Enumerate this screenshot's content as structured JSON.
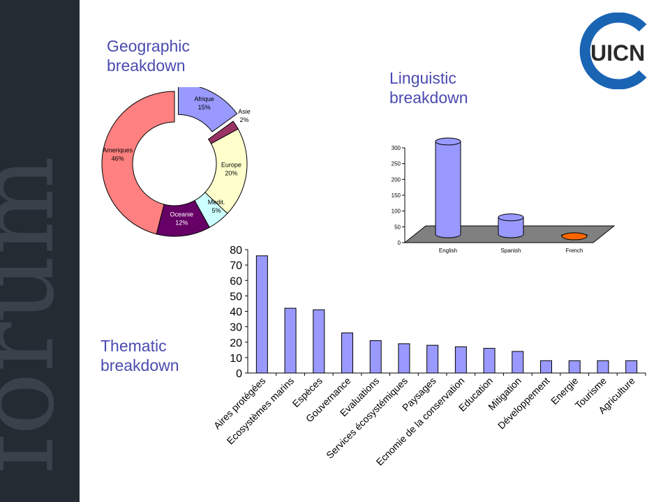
{
  "sidebar": {
    "watermark": "forum"
  },
  "logo": {
    "text": "UICN"
  },
  "headings": {
    "geographic": "Geographic\nbreakdown",
    "linguistic": "Linguistic\nbreakdown",
    "thematic": "Thematic\nbreakdown"
  },
  "colors": {
    "sidebar": "#252b33",
    "heading": "#4a4ab0",
    "bar": "#9999ff",
    "logo_blue": "#1a64b4",
    "logo_text": "#2a2a2a"
  },
  "chart_data": [
    {
      "type": "pie",
      "style": "donut",
      "slices": [
        {
          "label": "Afrique",
          "pct_label": "15%",
          "value": 15,
          "color": "#9999ff"
        },
        {
          "label": "Asie",
          "pct_label": "2%",
          "value": 2,
          "color": "#993366"
        },
        {
          "label": "Europe",
          "pct_label": "20%",
          "value": 20,
          "color": "#ffffcc"
        },
        {
          "label": "Medit.",
          "pct_label": "5%",
          "value": 5,
          "color": "#ccffff"
        },
        {
          "label": "Oceanie",
          "pct_label": "12%",
          "value": 12,
          "color": "#660066"
        },
        {
          "label": "Ameriques",
          "pct_label": "46%",
          "value": 46,
          "color": "#ff8080"
        }
      ],
      "exploded": [
        "Afrique"
      ]
    },
    {
      "type": "bar",
      "style": "3d-cylinder",
      "categories": [
        "English",
        "Spanish",
        "French"
      ],
      "values": [
        320,
        80,
        20
      ],
      "colors": [
        "#9999ff",
        "#9999ff",
        "#ff6600"
      ],
      "yticks": [
        0,
        50,
        100,
        150,
        200,
        250,
        300
      ],
      "ylim": [
        0,
        300
      ]
    },
    {
      "type": "bar",
      "categories": [
        "Aires protégées",
        "Ecosystèmes marins",
        "Espèces",
        "Gouvernance",
        "Evaluations",
        "Services écosystémiques",
        "Paysages",
        "Ecnomie de la conservation",
        "Education",
        "Mitigation",
        "Développement",
        "Energie",
        "Tourisme",
        "Agriculture"
      ],
      "values": [
        76,
        42,
        41,
        26,
        21,
        19,
        18,
        17,
        16,
        14,
        8,
        8,
        8,
        8
      ],
      "yticks": [
        0,
        10,
        20,
        30,
        40,
        50,
        60,
        70,
        80
      ],
      "ylim": [
        0,
        80
      ],
      "color": "#9999ff"
    }
  ]
}
